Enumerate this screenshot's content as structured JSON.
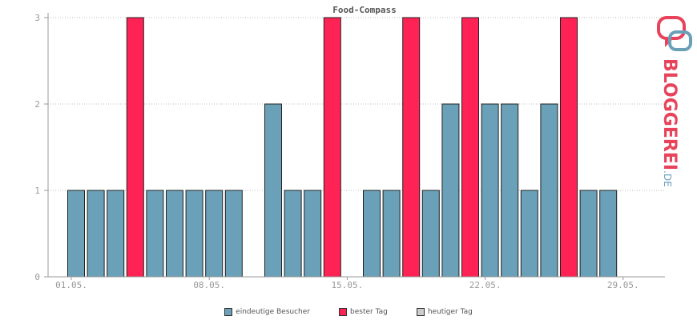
{
  "chart_data": {
    "type": "bar",
    "title": "Food-Compass",
    "x_ticks": [
      "01.05.",
      "08.05.",
      "15.05.",
      "22.05.",
      "29.05."
    ],
    "x_tick_days": [
      1,
      8,
      15,
      22,
      29
    ],
    "y_ticks": [
      "0",
      "1",
      "2",
      "3"
    ],
    "ylim": [
      0,
      3
    ],
    "days": [
      1,
      2,
      3,
      4,
      5,
      6,
      7,
      8,
      9,
      10,
      11,
      12,
      13,
      14,
      15,
      16,
      17,
      18,
      19,
      20,
      21,
      22,
      23,
      24,
      25,
      26,
      27,
      28,
      29,
      30,
      31
    ],
    "series": [
      {
        "name": "eindeutige Besucher",
        "color": "#6aa1b8",
        "values": [
          1,
          1,
          1,
          3,
          1,
          1,
          1,
          1,
          1,
          0,
          2,
          1,
          1,
          3,
          0,
          1,
          1,
          3,
          1,
          2,
          3,
          2,
          2,
          1,
          2,
          3,
          1,
          1,
          0,
          0,
          0
        ]
      }
    ],
    "best_days": [
      4,
      14,
      18,
      21,
      26
    ],
    "grid": true
  },
  "legend": [
    {
      "label": "eindeutige Besucher",
      "color": "#6aa1b8"
    },
    {
      "label": "bester Tag",
      "color": "#ff2255"
    },
    {
      "label": "heutiger Tag",
      "color": "#cccccc"
    }
  ],
  "logo": {
    "word": "BLOGGEREI",
    "suffix": ".DE"
  }
}
